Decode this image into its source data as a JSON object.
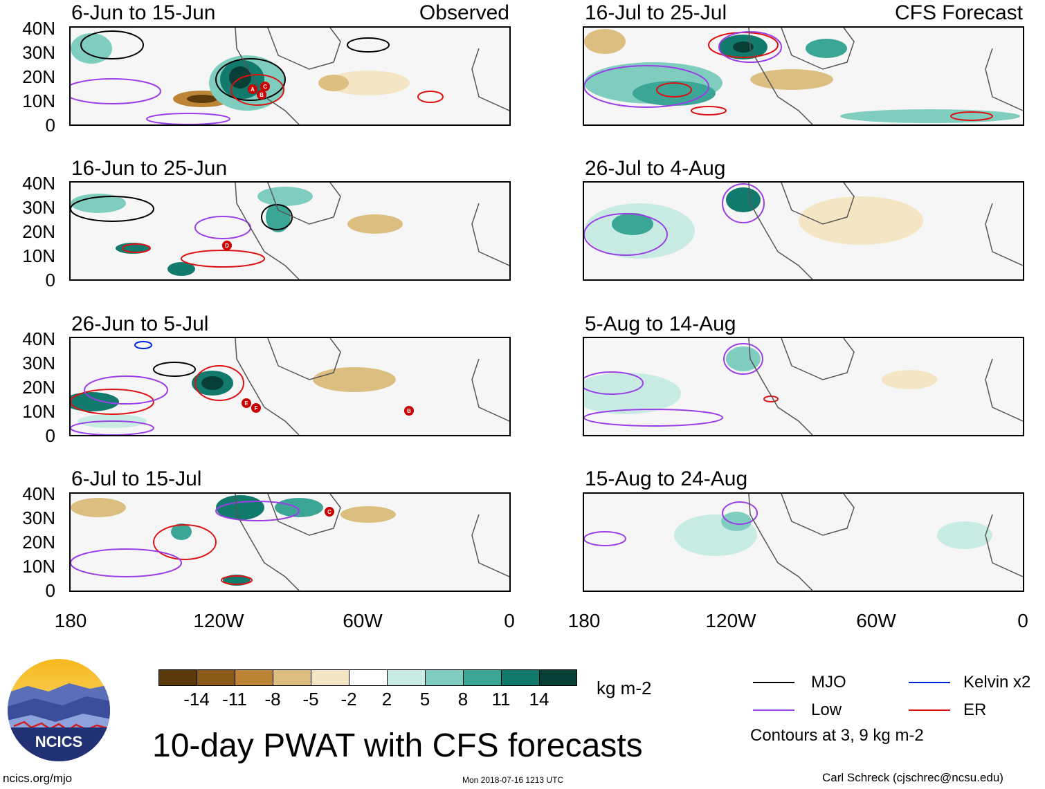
{
  "header": {
    "observed_label": "Observed",
    "forecast_label": "CFS Forecast"
  },
  "left_panels": [
    {
      "title": "6-Jun to 15-Jun"
    },
    {
      "title": "16-Jun to 25-Jun"
    },
    {
      "title": "26-Jun to 5-Jul"
    },
    {
      "title": "6-Jul to 15-Jul"
    }
  ],
  "right_panels": [
    {
      "title": "16-Jul to 25-Jul"
    },
    {
      "title": "26-Jul to 4-Aug"
    },
    {
      "title": "5-Aug to 14-Aug"
    },
    {
      "title": "15-Aug to 24-Aug"
    }
  ],
  "lat_ticks": [
    "40N",
    "30N",
    "20N",
    "10N",
    "0"
  ],
  "lon_ticks": [
    "180",
    "120W",
    "60W",
    "0"
  ],
  "storm_markers": {
    "panel1": [
      "A",
      "B",
      "C"
    ],
    "panel2": [
      "D"
    ],
    "panel3": [
      "E",
      "F",
      "B"
    ],
    "panel4": [
      "C"
    ]
  },
  "colorbar": {
    "unit": "kg m-2",
    "labels": [
      "-14",
      "-11",
      "-8",
      "-5",
      "-2",
      "2",
      "5",
      "8",
      "11",
      "14"
    ],
    "colors": [
      "#5b3a0b",
      "#8a5a18",
      "#bb8535",
      "#dcbf80",
      "#f4e6c4",
      "#ffffff",
      "#c8ebe3",
      "#7fcdbf",
      "#3ba596",
      "#117a6d",
      "#073f36"
    ]
  },
  "legend": {
    "items": [
      {
        "label": "MJO",
        "color": "#000000"
      },
      {
        "label": "Kelvin x2",
        "color": "#0022dd"
      },
      {
        "label": "Low",
        "color": "#9a3ee8"
      },
      {
        "label": "ER",
        "color": "#dd1111"
      }
    ],
    "contour_note": "Contours at 3, 9 kg m-2"
  },
  "branding": {
    "logo_text": "NCICS",
    "main_title": "10-day PWAT with CFS forecasts",
    "url": "ncics.org/mjo",
    "timestamp": "Mon 2018-07-16 1213 UTC",
    "author": "Carl Schreck (cjschrec@ncsu.edu)"
  }
}
